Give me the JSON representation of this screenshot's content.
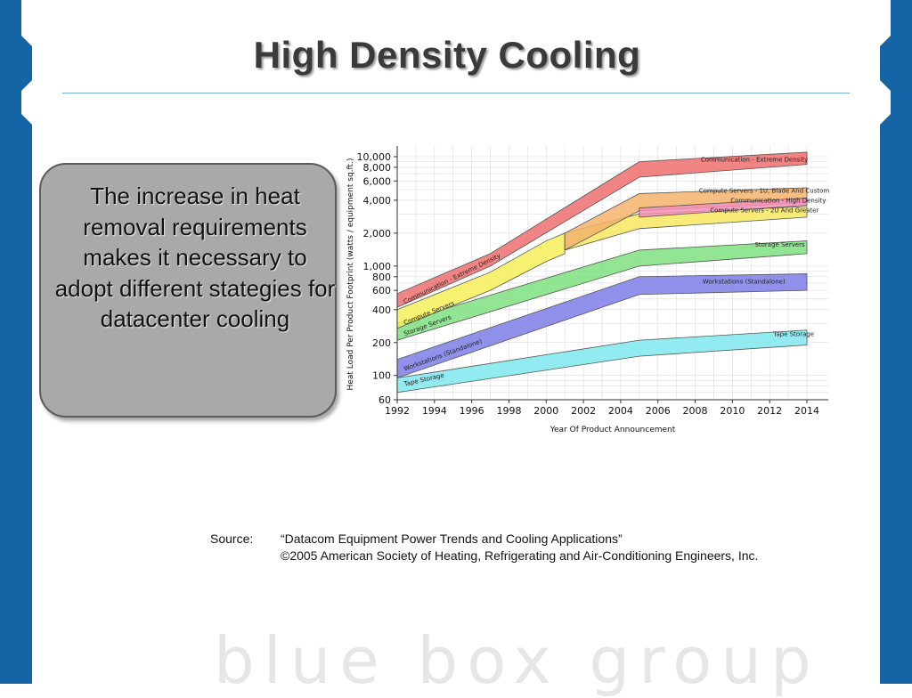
{
  "slide": {
    "title": "High Density Cooling",
    "callout": "The increase in heat removal requirements makes it necessary to adopt different stategies for datacenter cooling",
    "source_label": "Source:",
    "source_line1": "“Datacom Equipment Power Trends and Cooling Applications”",
    "source_line2": "©2005 American Society of Heating, Refrigerating and Air-Conditioning Engineers, Inc.",
    "brand": "blue box group",
    "colors": {
      "side_bar": "#1565a6",
      "title_rule": "#6fb3d9",
      "callout_fill": "#a9a9a9"
    }
  },
  "chart_data": {
    "type": "area",
    "xlabel": "Year Of Product Announcement",
    "ylabel": "Heat Load Per Product Footprint (watts / equipment sq.ft.)",
    "x_ticks": [
      "1992",
      "1994",
      "1996",
      "1998",
      "2000",
      "2002",
      "2004",
      "2006",
      "2008",
      "2010",
      "2012",
      "2014"
    ],
    "y_ticks": [
      "10,000",
      "8,000",
      "6,000",
      "4,000",
      "2,000",
      "1,000",
      "800",
      "600",
      "400",
      "200",
      "100",
      "60"
    ],
    "y_scale": "log",
    "ylim": [
      60,
      10000
    ],
    "xlim": [
      1992,
      2014
    ],
    "grid": true,
    "series": [
      {
        "name": "Tape Storage",
        "color": "#7fe8ee",
        "points": [
          [
            1992,
            70,
            95
          ],
          [
            2005,
            150,
            210
          ],
          [
            2014,
            190,
            260
          ]
        ],
        "labels": [
          {
            "text": "Tape Storage",
            "x": 1992.4,
            "y": 80,
            "angle": -13
          },
          {
            "text": "Tape Storage",
            "x": 2012.2,
            "y": 230,
            "angle": 0
          }
        ]
      },
      {
        "name": "Workstations (Standalone)",
        "color": "#7e7ee8",
        "points": [
          [
            1992,
            95,
            140
          ],
          [
            2005,
            550,
            800
          ],
          [
            2014,
            600,
            850
          ]
        ],
        "labels": [
          {
            "text": "Workstations (Standalone)",
            "x": 1992.4,
            "y": 110,
            "angle": -20
          },
          {
            "text": "Workstations (Standalone)",
            "x": 2008.4,
            "y": 690,
            "angle": 0
          }
        ]
      },
      {
        "name": "Storage Servers",
        "color": "#7fe07f",
        "points": [
          [
            1992,
            210,
            300
          ],
          [
            2005,
            1000,
            1400
          ],
          [
            2014,
            1300,
            1700
          ]
        ],
        "labels": [
          {
            "text": "Storage Servers",
            "x": 1992.4,
            "y": 230,
            "angle": -20
          },
          {
            "text": "Storage Servers",
            "x": 2011.2,
            "y": 1500,
            "angle": 0
          }
        ]
      },
      {
        "name": "Compute Servers",
        "color": "#f7f05a",
        "points": [
          [
            1992,
            270,
            400
          ],
          [
            1997,
            600,
            880
          ],
          [
            2000,
            1100,
            1700
          ],
          [
            2001,
            1300,
            2000
          ]
        ],
        "labels": [
          {
            "text": "Compute Servers",
            "x": 1992.4,
            "y": 290,
            "angle": -22
          }
        ]
      },
      {
        "name": "Compute Servers - 2U And Greater",
        "color": "#f8e860",
        "points": [
          [
            2001,
            1400,
            2000
          ],
          [
            2005,
            2200,
            3000
          ],
          [
            2014,
            2800,
            3500
          ]
        ],
        "labels": [
          {
            "text": "Compute Servers - 2U And Greater",
            "x": 2008.8,
            "y": 3100,
            "angle": 0
          }
        ]
      },
      {
        "name": "Compute Servers - 1U, Blade And Custom",
        "color": "#f5b36b",
        "points": [
          [
            2001,
            1400,
            2000
          ],
          [
            2005,
            3200,
            4600
          ],
          [
            2014,
            3800,
            5200
          ]
        ],
        "labels": [
          {
            "text": "Compute Servers - 1U, Blade And Custom",
            "x": 2008.2,
            "y": 4700,
            "angle": 0
          }
        ]
      },
      {
        "name": "Communication - High Density",
        "color": "#f48fb8",
        "points": [
          [
            2005,
            2800,
            3400
          ],
          [
            2014,
            3600,
            4200
          ]
        ],
        "labels": [
          {
            "text": "Communication - High Density",
            "x": 2009.9,
            "y": 3800,
            "angle": 0
          }
        ]
      },
      {
        "name": "Communication - Extreme Density",
        "color": "#ee6f6f",
        "points": [
          [
            1992,
            420,
            560
          ],
          [
            1997,
            1000,
            1300
          ],
          [
            2005,
            6500,
            9000
          ],
          [
            2014,
            8500,
            11000
          ]
        ],
        "labels": [
          {
            "text": "Communication - Extreme Density",
            "x": 1992.4,
            "y": 450,
            "angle": -26
          },
          {
            "text": "Communication - Extreme Density",
            "x": 2008.3,
            "y": 9000,
            "angle": 0
          }
        ]
      }
    ]
  }
}
